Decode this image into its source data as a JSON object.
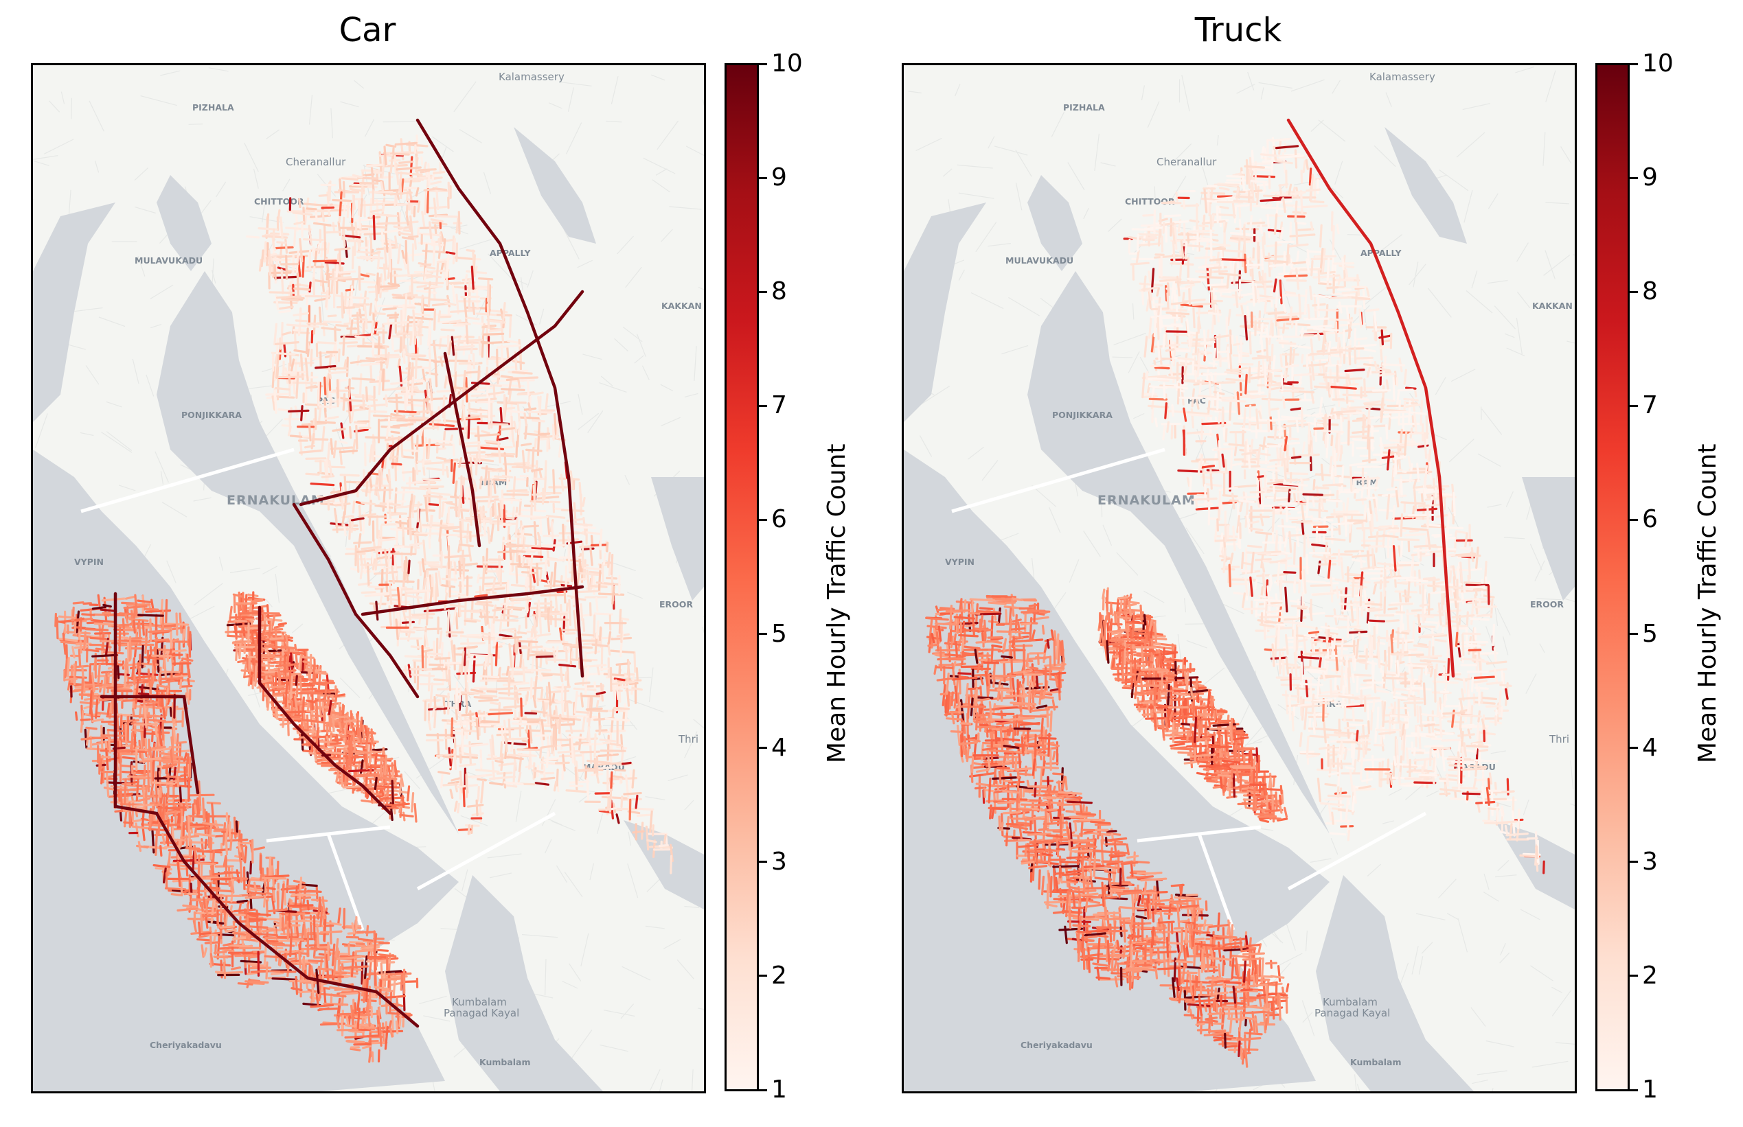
{
  "colorbar_label": "Mean Hourly Traffic Count",
  "colormap": "Reds",
  "value_range": [
    1,
    10
  ],
  "colorbar_ticks": [
    "1",
    "2",
    "3",
    "4",
    "5",
    "6",
    "7",
    "8",
    "9",
    "10"
  ],
  "colors": {
    "water": "#d3d7dc",
    "land": "#f4f5f2",
    "reds_low": "#fff5f0",
    "reds_mid": "#fb6a4a",
    "reds_high": "#67000d"
  },
  "panels": [
    {
      "title": "Car",
      "mean_level_north": 2.0,
      "mean_level_south": 4.6,
      "major_road_level": 9.8
    },
    {
      "title": "Truck",
      "mean_level_north": 1.5,
      "mean_level_south": 4.8,
      "major_road_level": 7.5
    }
  ],
  "place_labels": [
    "Kalamassery",
    "PIZHALA",
    "Cheranallur",
    "CHITTOOR",
    "MULAVUKADU",
    "APPALLY",
    "KAKKAN",
    "PONJIKKARA",
    "PAC",
    "ERNAKULAM",
    "VYPIN",
    "EROOR",
    "THRA",
    "Thri",
    "MARADU",
    "Kumbalam Panagad Kayal",
    "Cheriyakadavu",
    "Kumbalam",
    "TRAM"
  ]
}
